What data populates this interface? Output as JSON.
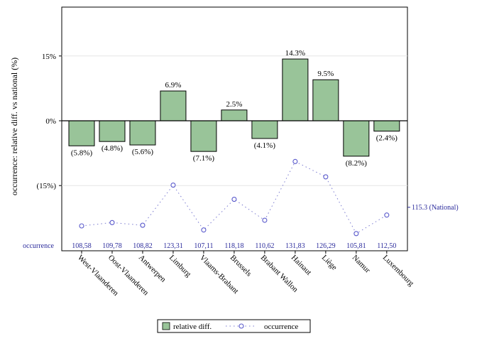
{
  "chart_data": {
    "type": "bar",
    "ylabel": "occurrence: relative diff. vs national (%)",
    "y_ticks": [
      "15%",
      "0%",
      "(15%)"
    ],
    "ylim": [
      -0.255,
      0.265
    ],
    "categories": [
      "West-Vlaanderen",
      "Oost-Vlaanderen",
      "Antwerpen",
      "Limburg",
      "Vlaams-Brabant",
      "Brussels",
      "Brabant Wallon",
      "Hainaut",
      "Liège",
      "Namur",
      "Luxembourg"
    ],
    "series": [
      {
        "name": "relative diff.",
        "values": [
          -0.058,
          -0.048,
          -0.056,
          0.069,
          -0.071,
          0.025,
          -0.041,
          0.143,
          0.095,
          -0.082,
          -0.024
        ],
        "labels": [
          "(5.8%)",
          "(4.8%)",
          "(5.6%)",
          "6.9%",
          "(7.1%)",
          "2.5%",
          "(4.1%)",
          "14.3%",
          "9.5%",
          "(8.2%)",
          "(2.4%)"
        ],
        "color": "#99c499"
      },
      {
        "name": "occurrence",
        "values": [
          108.58,
          109.78,
          108.82,
          123.31,
          107.11,
          118.18,
          110.62,
          131.83,
          126.29,
          105.81,
          112.5
        ],
        "labels": [
          "108,58",
          "109,78",
          "108,82",
          "123,31",
          "107,11",
          "118,18",
          "110,62",
          "131,83",
          "126,29",
          "105,81",
          "112,50"
        ],
        "color": "#5a5acc"
      }
    ],
    "occurrence_row_label": "occurrence",
    "national_label": "115.3 (National)",
    "national_value": 115.3,
    "grid": true
  }
}
